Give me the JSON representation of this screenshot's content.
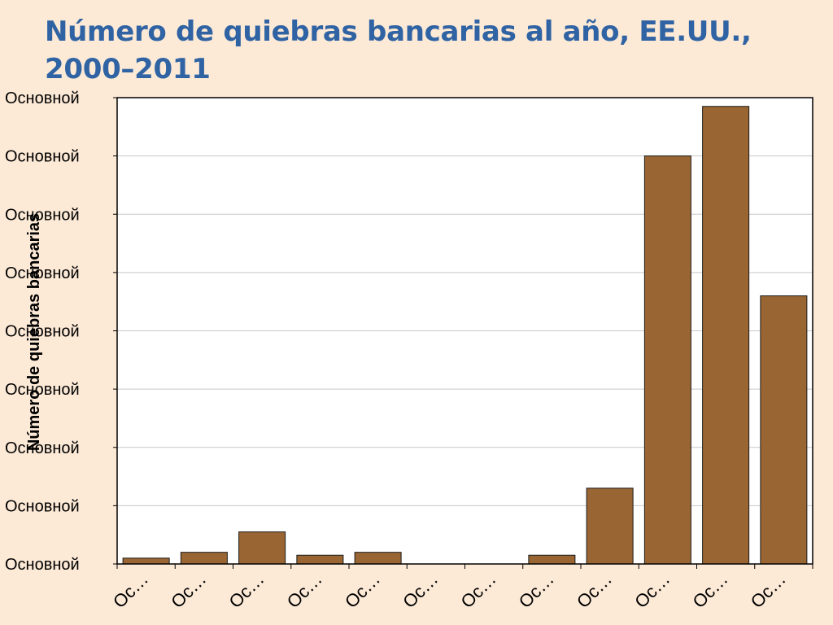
{
  "title": "Número de quiebras bancarias al año, EE.UU., 2000–2011",
  "colors": {
    "bar": "#996633",
    "bar_stroke": "#1a1a1a",
    "grid": "#c8c8c8",
    "title": "#2f63a3",
    "background": "#fce9d6",
    "plot": "#ffffff"
  },
  "chart_data": {
    "type": "bar",
    "title": "Número de quiebras bancarias al año, EE.UU., 2000–2011",
    "ylabel": "Número de quiebras bancarias",
    "xlabel": "",
    "ylim": [
      0,
      160
    ],
    "y_ticks": [
      0,
      20,
      40,
      60,
      80,
      100,
      120,
      140,
      160
    ],
    "y_tick_labels": [
      "Основной",
      "Основной",
      "Основной",
      "Основной",
      "Основной",
      "Основной",
      "Основной",
      "Основной",
      "Основной"
    ],
    "categories": [
      "Oc…",
      "Oc…",
      "Oc…",
      "Oc…",
      "Oc…",
      "Oc…",
      "Oc…",
      "Oc…",
      "Oc…",
      "Oc…",
      "Oc…",
      "Oc…"
    ],
    "values": [
      2,
      4,
      11,
      3,
      4,
      0,
      0,
      3,
      26,
      140,
      157,
      92
    ],
    "grid": true,
    "legend": "none"
  }
}
